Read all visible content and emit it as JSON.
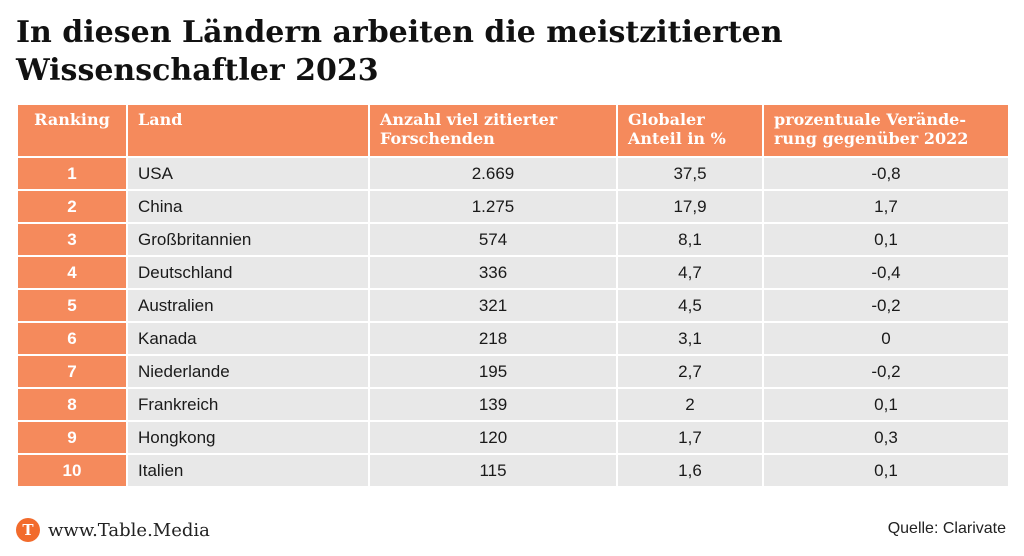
{
  "title": "In diesen Ländern arbeiten die meistzitierten Wissenschaftler 2023",
  "chart_data": {
    "type": "table",
    "columns": [
      "Ranking",
      "Land",
      "Anzahl viel zitierter Forschenden",
      "Globaler Anteil in %",
      "prozentuale Verände-rung gegenüber 2022"
    ],
    "rows": [
      {
        "ranking": "1",
        "land": "USA",
        "anzahl": "2.669",
        "anteil": "37,5",
        "veraenderung": "-0,8"
      },
      {
        "ranking": "2",
        "land": "China",
        "anzahl": "1.275",
        "anteil": "17,9",
        "veraenderung": "1,7"
      },
      {
        "ranking": "3",
        "land": "Großbritannien",
        "anzahl": "574",
        "anteil": "8,1",
        "veraenderung": "0,1"
      },
      {
        "ranking": "4",
        "land": "Deutschland",
        "anzahl": "336",
        "anteil": "4,7",
        "veraenderung": "-0,4"
      },
      {
        "ranking": "5",
        "land": "Australien",
        "anzahl": "321",
        "anteil": "4,5",
        "veraenderung": "-0,2"
      },
      {
        "ranking": "6",
        "land": "Kanada",
        "anzahl": "218",
        "anteil": "3,1",
        "veraenderung": "0"
      },
      {
        "ranking": "7",
        "land": "Niederlande",
        "anzahl": "195",
        "anteil": "2,7",
        "veraenderung": "-0,2"
      },
      {
        "ranking": "8",
        "land": "Frankreich",
        "anzahl": "139",
        "anteil": "2",
        "veraenderung": "0,1"
      },
      {
        "ranking": "9",
        "land": "Hongkong",
        "anzahl": "120",
        "anteil": "1,7",
        "veraenderung": "0,3"
      },
      {
        "ranking": "10",
        "land": "Italien",
        "anzahl": "115",
        "anteil": "1,6",
        "veraenderung": "0,1"
      }
    ]
  },
  "footer": {
    "logo_letter": "T",
    "site": "www.Table.Media",
    "source_label": "Quelle:",
    "source": "Clarivate"
  },
  "colors": {
    "accent": "#f58a5c",
    "logo": "#f26b2c",
    "row_bg": "#e8e8e8"
  },
  "icons": {
    "logo": "table-media-logo-icon"
  }
}
